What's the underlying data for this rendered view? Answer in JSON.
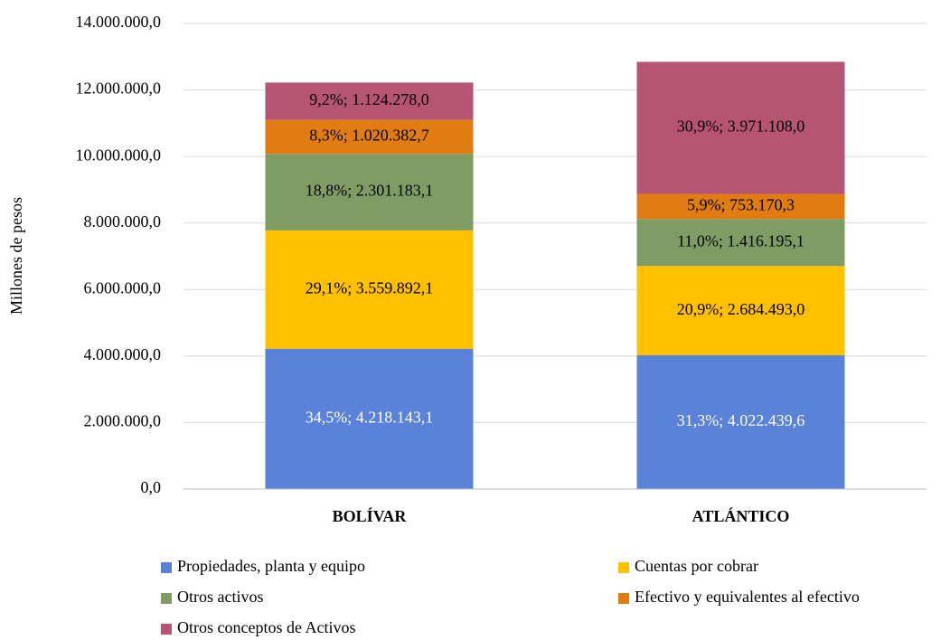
{
  "chart_data": {
    "type": "stacked_bar",
    "y_label": "Millones  de pesos",
    "categories": [
      "BOLÍVAR",
      "ATLÁNTICO"
    ],
    "series": [
      {
        "name": "Propiedades, planta y equipo",
        "color": "#5982d8",
        "values": [
          4218143.1,
          4022439.6
        ],
        "value_labels": [
          "34,5%; 4.218.143,1",
          "31,3%; 4.022.439,6"
        ]
      },
      {
        "name": "Cuentas por cobrar",
        "color": "#ffc000",
        "values": [
          3559892.1,
          2684493.0
        ],
        "value_labels": [
          "29,1%; 3.559.892,1",
          "20,9%; 2.684.493,0"
        ]
      },
      {
        "name": "Otros activos",
        "color": "#7e9c63",
        "values": [
          2301183.1,
          1416195.1
        ],
        "value_labels": [
          "18,8%; 2.301.183,1",
          "11,0%; 1.416.195,1"
        ]
      },
      {
        "name": "Efectivo y equivalentes al efectivo",
        "color": "#e07c12",
        "values": [
          1020382.7,
          753170.3
        ],
        "value_labels": [
          "8,3%; 1.020.382,7",
          "5,9%; 753.170,3"
        ]
      },
      {
        "name": "Otros conceptos de Activos",
        "color": "#b65473",
        "values": [
          1124278.0,
          3971108.0
        ],
        "value_labels": [
          "9,2%; 1.124.278,0",
          "30,9%; 3.971.108,0"
        ]
      }
    ],
    "ylim": [
      0,
      14000000
    ],
    "yticks": [
      {
        "value": 0,
        "label": "0,0"
      },
      {
        "value": 2000000,
        "label": "2.000.000,0"
      },
      {
        "value": 4000000,
        "label": "4.000.000,0"
      },
      {
        "value": 6000000,
        "label": "6.000.000,0"
      },
      {
        "value": 8000000,
        "label": "8.000.000,0"
      },
      {
        "value": 10000000,
        "label": "10.000.000,0"
      },
      {
        "value": 12000000,
        "label": "12.000.000,0"
      },
      {
        "value": 14000000,
        "label": "14.000.000,0"
      }
    ],
    "grid": true
  }
}
